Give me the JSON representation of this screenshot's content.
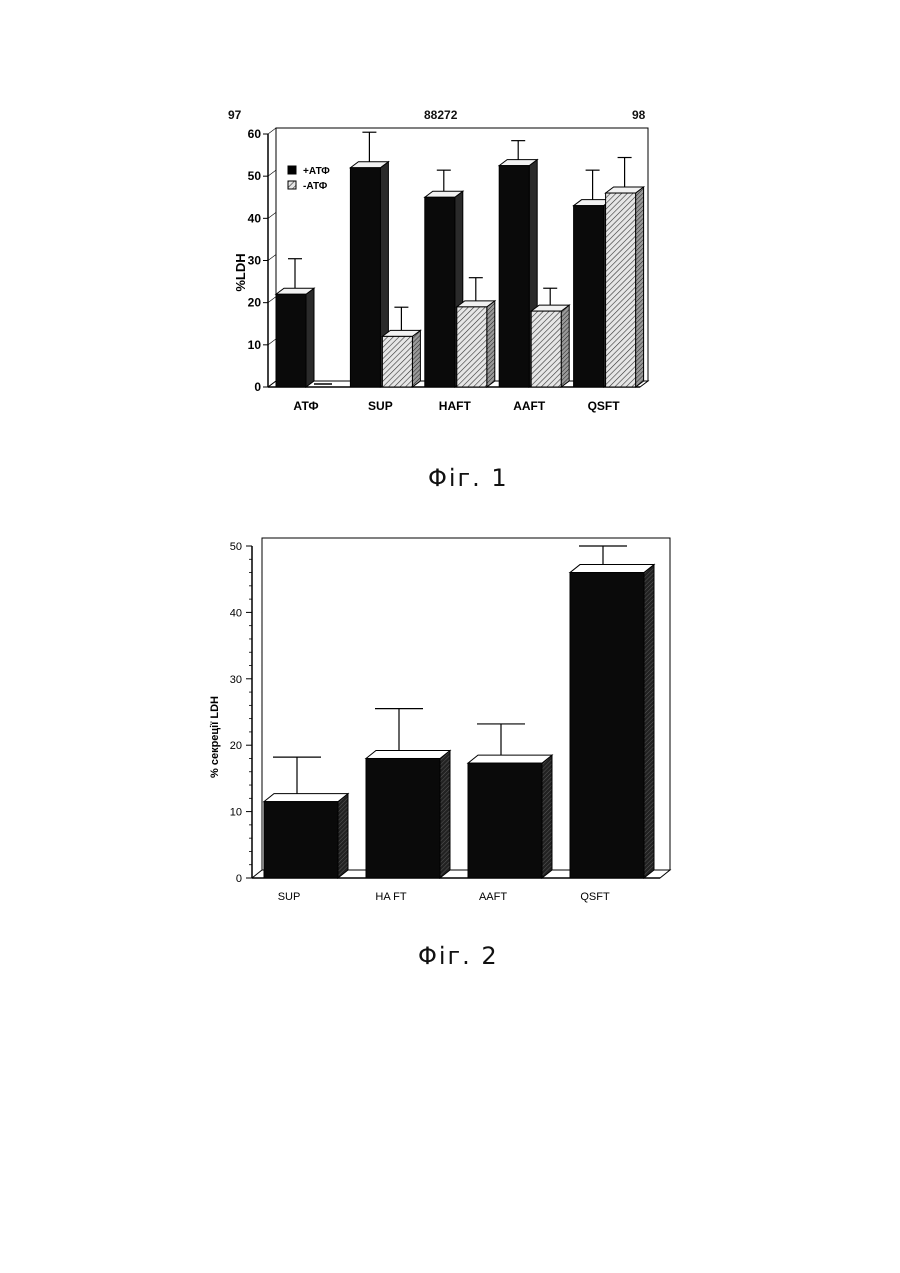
{
  "header": {
    "left": "97",
    "center": "88272",
    "right": "98"
  },
  "captions": {
    "fig1": "Φіг. 1",
    "fig2": "Φіг. 2"
  },
  "colors": {
    "bar_dark": "#0a0a0a",
    "bar_light": "#e0e0e0",
    "axis": "#000000"
  },
  "chart_data": [
    {
      "type": "bar",
      "categories": [
        "АТФ",
        "SUP",
        "HAFT",
        "AAFT",
        "QSFT"
      ],
      "ylabel": "%LDH",
      "ylim": [
        0,
        60
      ],
      "yticks": [
        0,
        10,
        20,
        30,
        40,
        50,
        60
      ],
      "legend_placement": "top-left",
      "series": [
        {
          "name": "+АТФ",
          "values": [
            22,
            52,
            45,
            52.5,
            43
          ],
          "errors": [
            7,
            7,
            5,
            4.5,
            7
          ],
          "fill": "solid-black"
        },
        {
          "name": "-АТФ",
          "values": [
            0,
            12,
            19,
            18,
            46
          ],
          "errors": [
            0,
            5.5,
            5.5,
            4,
            7
          ],
          "fill": "hatched"
        }
      ]
    },
    {
      "type": "bar",
      "categories": [
        "SUP",
        "HA FT",
        "AAFT",
        "QSFT"
      ],
      "ylabel": "% секреції  LDH",
      "ylim": [
        0,
        50
      ],
      "yticks": [
        0,
        10,
        20,
        30,
        40,
        50
      ],
      "series": [
        {
          "values": [
            11.5,
            18,
            17.3,
            46
          ],
          "errors": [
            5.5,
            6.3,
            4.7,
            2.8
          ]
        }
      ]
    }
  ]
}
